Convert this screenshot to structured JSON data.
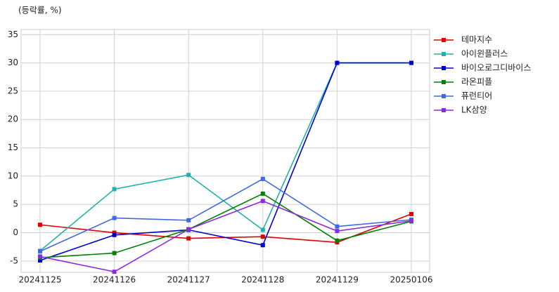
{
  "chart_data": {
    "type": "line",
    "annotation": "(등락률, %)",
    "categories": [
      "20241125",
      "20241126",
      "20241127",
      "20241128",
      "20241129",
      "20250106"
    ],
    "series": [
      {
        "name": "테마지수",
        "color": "#e00000",
        "values": [
          1.4,
          0,
          -1.0,
          -0.7,
          -1.7,
          3.3
        ]
      },
      {
        "name": "아이윈플러스",
        "color": "#20b2aa",
        "values": [
          -3.2,
          7.7,
          10.2,
          0.5,
          30,
          30
        ]
      },
      {
        "name": "바이오로그디바이스",
        "color": "#0000cd",
        "values": [
          -4.9,
          -0.4,
          0.5,
          -2.2,
          30,
          30
        ]
      },
      {
        "name": "라온피플",
        "color": "#008000",
        "values": [
          -4.4,
          -3.6,
          0.6,
          6.9,
          -1.4,
          2.0
        ]
      },
      {
        "name": "퓨런티어",
        "color": "#4169e1",
        "values": [
          -3.3,
          2.6,
          2.2,
          9.5,
          1.1,
          2.3
        ]
      },
      {
        "name": "LK삼양",
        "color": "#8a2be2",
        "values": [
          -4.2,
          -6.9,
          0.6,
          5.6,
          0.3,
          2.1
        ]
      }
    ],
    "ylim": [
      -7,
      35.9
    ],
    "yticks": [
      -5,
      0,
      5,
      10,
      15,
      20,
      25,
      30,
      35
    ],
    "grid": true,
    "legend": "right"
  }
}
